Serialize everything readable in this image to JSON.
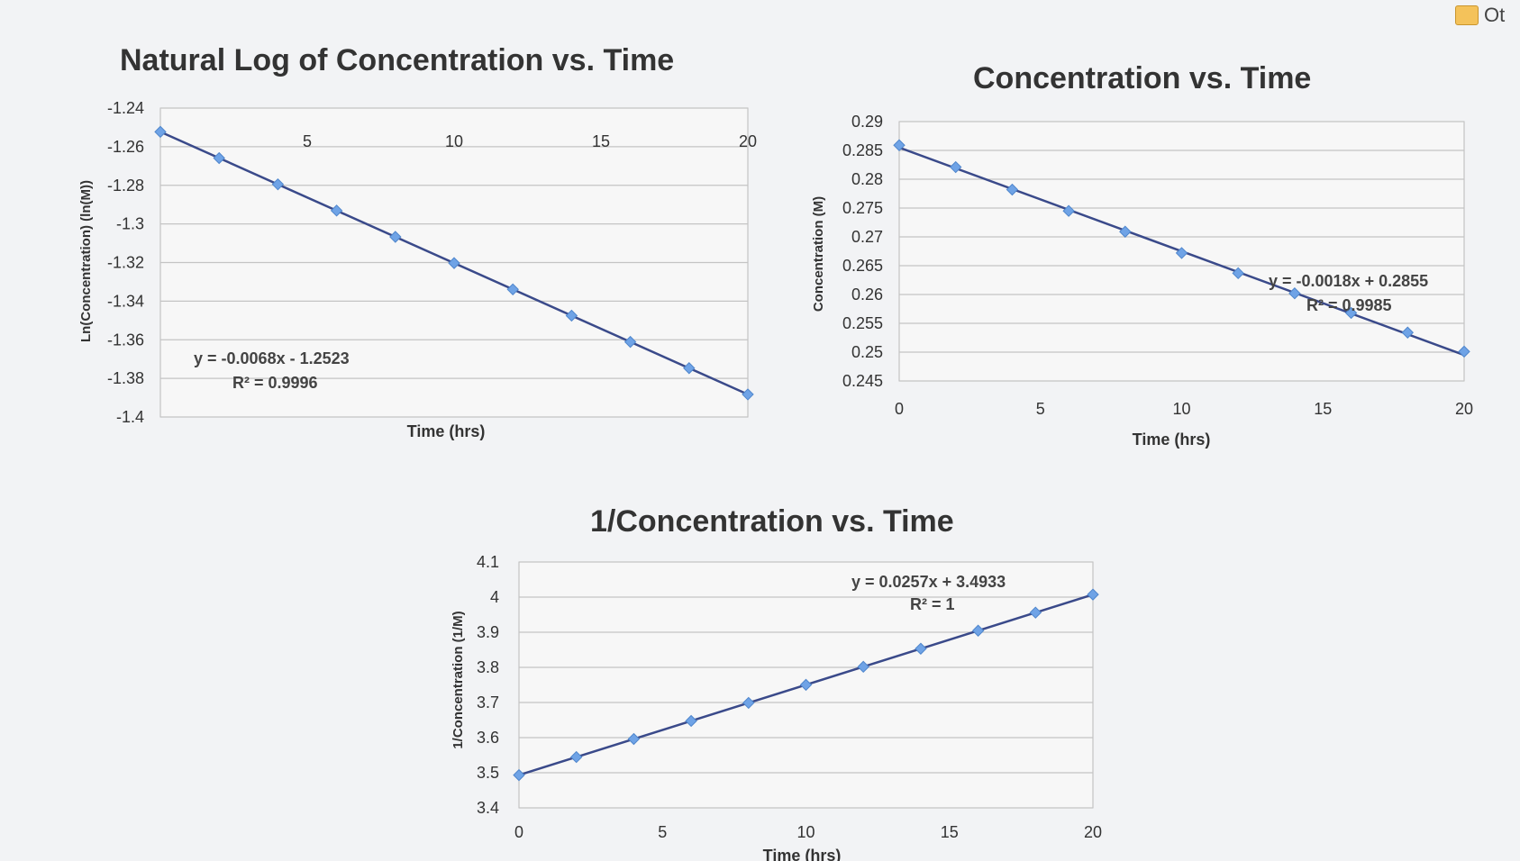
{
  "app": {
    "corner_label": "Ot"
  },
  "charts": [
    {
      "title": "Natural Log of Concentration vs. Time",
      "xlabel": "Time (hrs)",
      "ylabel": "Ln(Concentration) (ln(M))",
      "x_ticks": [
        5,
        10,
        15,
        20
      ],
      "y_ticks": [
        "-1.24",
        "-1.26",
        "-1.28",
        "-1.3",
        "-1.32",
        "-1.34",
        "-1.36",
        "-1.38",
        "-1.4"
      ],
      "trendline": {
        "equation": "y = -0.0068x - 1.2523",
        "r2": "R² = 0.9996"
      }
    },
    {
      "title": "Concentration vs. Time",
      "xlabel": "Time (hrs)",
      "ylabel": "Concentration (M)",
      "x_ticks": [
        0,
        5,
        10,
        15,
        20
      ],
      "y_ticks": [
        "0.29",
        "0.285",
        "0.28",
        "0.275",
        "0.27",
        "0.265",
        "0.26",
        "0.255",
        "0.25",
        "0.245"
      ],
      "trendline": {
        "equation": "y = -0.0018x + 0.2855",
        "r2": "R² = 0.9985"
      }
    },
    {
      "title": "1/Concentration vs. Time",
      "xlabel": "Time (hrs)",
      "ylabel": "1/Concentration (1/M)",
      "x_ticks": [
        0,
        5,
        10,
        15,
        20
      ],
      "y_ticks": [
        "4.1",
        "4",
        "3.9",
        "3.8",
        "3.7",
        "3.6",
        "3.5",
        "3.4"
      ],
      "trendline": {
        "equation": "y = 0.0257x + 3.4933",
        "r2": "R² = 1"
      }
    }
  ],
  "chart_data": [
    {
      "type": "scatter",
      "title": "Natural Log of Concentration vs. Time",
      "xlabel": "Time (hrs)",
      "ylabel": "Ln(Concentration) (ln(M))",
      "xlim": [
        0,
        20
      ],
      "ylim": [
        -1.4,
        -1.24
      ],
      "grid": true,
      "x": [
        0,
        2,
        4,
        6,
        8,
        10,
        12,
        14,
        16,
        18,
        20
      ],
      "y": [
        -1.2523,
        -1.2659,
        -1.2795,
        -1.2931,
        -1.3067,
        -1.3203,
        -1.3339,
        -1.3475,
        -1.3611,
        -1.3747,
        -1.3883
      ],
      "series": [
        {
          "values": [
            -1.2523,
            -1.2659,
            -1.2795,
            -1.2931,
            -1.3067,
            -1.3203,
            -1.3339,
            -1.3475,
            -1.3611,
            -1.3747,
            -1.3883
          ]
        }
      ],
      "trendline": {
        "slope": -0.0068,
        "intercept": -1.2523
      },
      "color": "#6fa3e6",
      "line_color": "#3a4a8a"
    },
    {
      "type": "scatter",
      "title": "Concentration vs. Time",
      "xlabel": "Time (hrs)",
      "ylabel": "Concentration (M)",
      "xlim": [
        0,
        20
      ],
      "ylim": [
        0.245,
        0.29
      ],
      "grid": true,
      "x": [
        0,
        2,
        4,
        6,
        8,
        10,
        12,
        14,
        16,
        18,
        20
      ],
      "y": [
        0.2859,
        0.2821,
        0.2782,
        0.2745,
        0.2709,
        0.2672,
        0.2637,
        0.2602,
        0.2568,
        0.2534,
        0.2501
      ],
      "series": [
        {
          "values": [
            0.2859,
            0.2821,
            0.2782,
            0.2745,
            0.2709,
            0.2672,
            0.2637,
            0.2602,
            0.2568,
            0.2534,
            0.2501
          ]
        }
      ],
      "trendline": {
        "slope": -0.0018,
        "intercept": 0.2855
      },
      "color": "#6fa3e6",
      "line_color": "#3a4a8a"
    },
    {
      "type": "scatter",
      "title": "1/Concentration vs. Time",
      "xlabel": "Time (hrs)",
      "ylabel": "1/Concentration (1/M)",
      "xlim": [
        0,
        20
      ],
      "ylim": [
        3.4,
        4.1
      ],
      "grid": true,
      "x": [
        0,
        2,
        4,
        6,
        8,
        10,
        12,
        14,
        16,
        18,
        20
      ],
      "y": [
        3.4933,
        3.5447,
        3.5961,
        3.6475,
        3.6989,
        3.7503,
        3.8017,
        3.8531,
        3.9045,
        3.9559,
        4.0073
      ],
      "series": [
        {
          "values": [
            3.4933,
            3.5447,
            3.5961,
            3.6475,
            3.6989,
            3.7503,
            3.8017,
            3.8531,
            3.9045,
            3.9559,
            4.0073
          ]
        }
      ],
      "trendline": {
        "slope": 0.0257,
        "intercept": 3.4933
      },
      "color": "#6fa3e6",
      "line_color": "#3a4a8a"
    }
  ]
}
